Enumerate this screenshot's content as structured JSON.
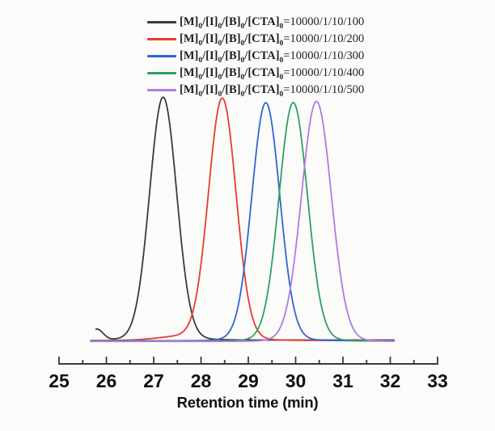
{
  "chart_data": {
    "type": "line",
    "title": "",
    "xlabel": "Retention time (min)",
    "ylabel": "",
    "x_range": [
      25,
      33
    ],
    "x_ticks": [
      "25",
      "26",
      "27",
      "28",
      "29",
      "30",
      "31",
      "32",
      "33"
    ],
    "minor_tick_step": 0.5,
    "grid": false,
    "y_axis_shown": false,
    "legend_position": "top-center",
    "axis_color": "#3a3a3a",
    "tick_label_color": "#111111",
    "curve_domain": [
      25.67,
      32.08
    ],
    "legend": {
      "prefix_tokens": [
        {
          "text": "[M]",
          "sub": "0"
        },
        {
          "text": "/[I]",
          "sub": "0"
        },
        {
          "text": "/[B]",
          "sub": "0"
        },
        {
          "text": "/[CTA]",
          "sub": "0"
        }
      ],
      "equals_sign": "="
    },
    "series": [
      {
        "name": "[M]0/[I]0/[B]0/[CTA]0=10000/1/10/100",
        "ratio": "10000/1/10/100",
        "color": "#3a3a3a",
        "peak": {
          "center": 27.2,
          "sigma": 0.285,
          "height": 1.0
        },
        "extras": [
          {
            "center": 25.8,
            "sigma": 0.13,
            "height": 0.045
          },
          {
            "center": 27.22,
            "sigma": 0.6,
            "height": 0.013
          }
        ],
        "domain": [
          25.78,
          32.08
        ],
        "baseline_offset": 0
      },
      {
        "name": "[M]0/[I]0/[B]0/[CTA]0=10000/1/10/200",
        "ratio": "10000/1/10/200",
        "color": "#e93b2d",
        "peak": {
          "center": 28.45,
          "sigma": 0.29,
          "height": 0.995
        },
        "extras": [
          {
            "center": 27.55,
            "sigma": 0.5,
            "height": 0.015
          },
          {
            "center": 28.47,
            "sigma": 0.61,
            "height": 0.013
          }
        ],
        "baseline_offset": 0.5
      },
      {
        "name": "[M]0/[I]0/[B]0/[CTA]0=10000/1/10/300",
        "ratio": "10000/1/10/300",
        "color": "#2e66cf",
        "peak": {
          "center": 29.37,
          "sigma": 0.295,
          "height": 0.98
        },
        "extras": [
          {
            "center": 29.39,
            "sigma": 0.62,
            "height": 0.013
          }
        ],
        "baseline_offset": 0.9
      },
      {
        "name": "[M]0/[I]0/[B]0/[CTA]0=10000/1/10/400",
        "ratio": "10000/1/10/400",
        "color": "#2fa060",
        "peak": {
          "center": 29.95,
          "sigma": 0.3,
          "height": 0.982
        },
        "extras": [
          {
            "center": 29.97,
            "sigma": 0.63,
            "height": 0.013
          }
        ],
        "baseline_offset": 1.3
      },
      {
        "name": "[M]0/[I]0/[B]0/[CTA]0=10000/1/10/500",
        "ratio": "10000/1/10/500",
        "color": "#ae7ce1",
        "peak": {
          "center": 30.44,
          "sigma": 0.315,
          "height": 0.988
        },
        "extras": [
          {
            "center": 30.46,
            "sigma": 0.66,
            "height": 0.013
          }
        ],
        "baseline_offset": 1.7
      }
    ]
  }
}
